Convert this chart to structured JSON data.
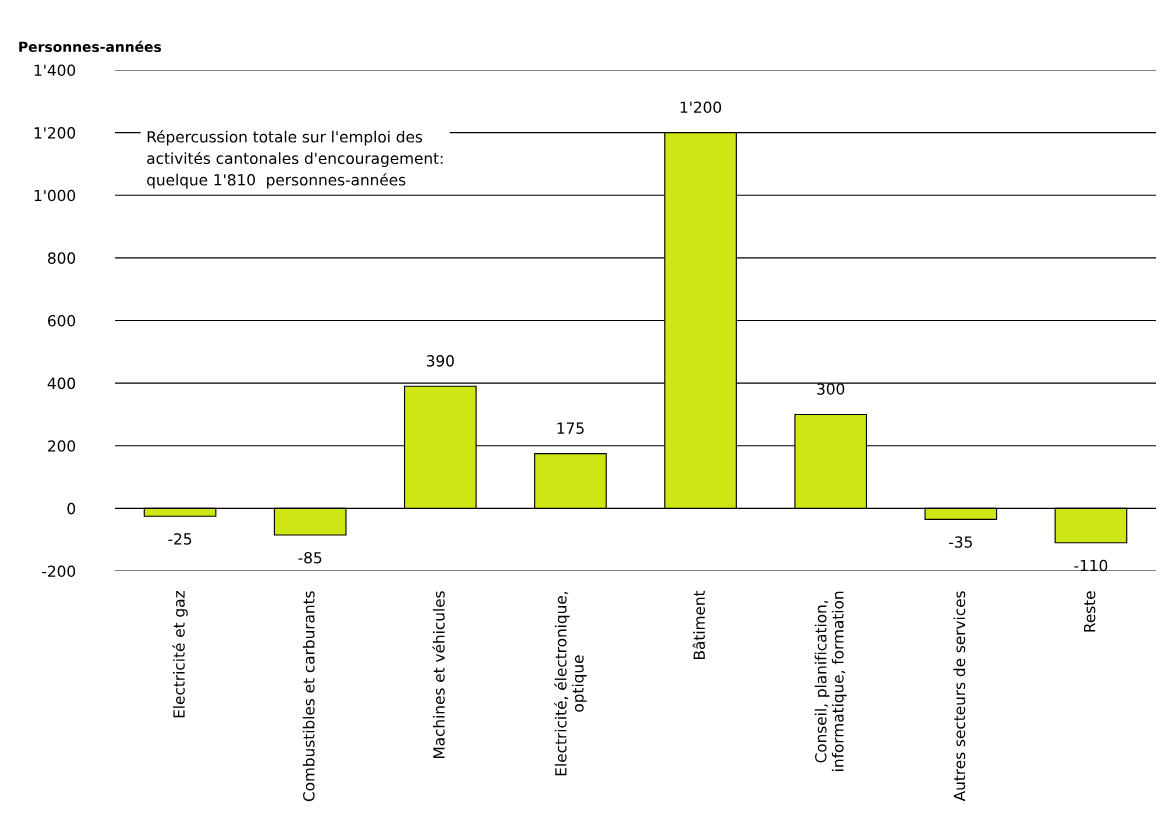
{
  "chart_data": {
    "type": "bar",
    "ylabel": "Personnes-années",
    "categories": [
      "Electricité et gaz",
      "Combustibles et carburants",
      "Machines et véhicules",
      "Electricité, électronique,\noptique",
      "Bâtiment",
      "Conseil, planification,\ninformatique, formation",
      "Autres secteurs de services",
      "Reste"
    ],
    "values": [
      -25,
      -85,
      390,
      175,
      1200,
      300,
      -35,
      -110
    ],
    "value_labels": [
      "-25",
      "-85",
      "390",
      "175",
      "1'200",
      "300",
      "-35",
      "-110"
    ],
    "color": "#cde614",
    "ylim": [
      -200,
      1400
    ],
    "yticks": [
      -200,
      0,
      200,
      400,
      600,
      800,
      {
        "value": 1000,
        "label": "1'000"
      },
      {
        "value": 1200,
        "label": "1'200"
      },
      {
        "value": 1400,
        "label": "1'400"
      }
    ],
    "grid": "y",
    "annotations": [
      "Répercussion totale sur l'emploi des\nactivités cantonales d'encouragement:\nquelque 1'810  personnes-années"
    ]
  }
}
